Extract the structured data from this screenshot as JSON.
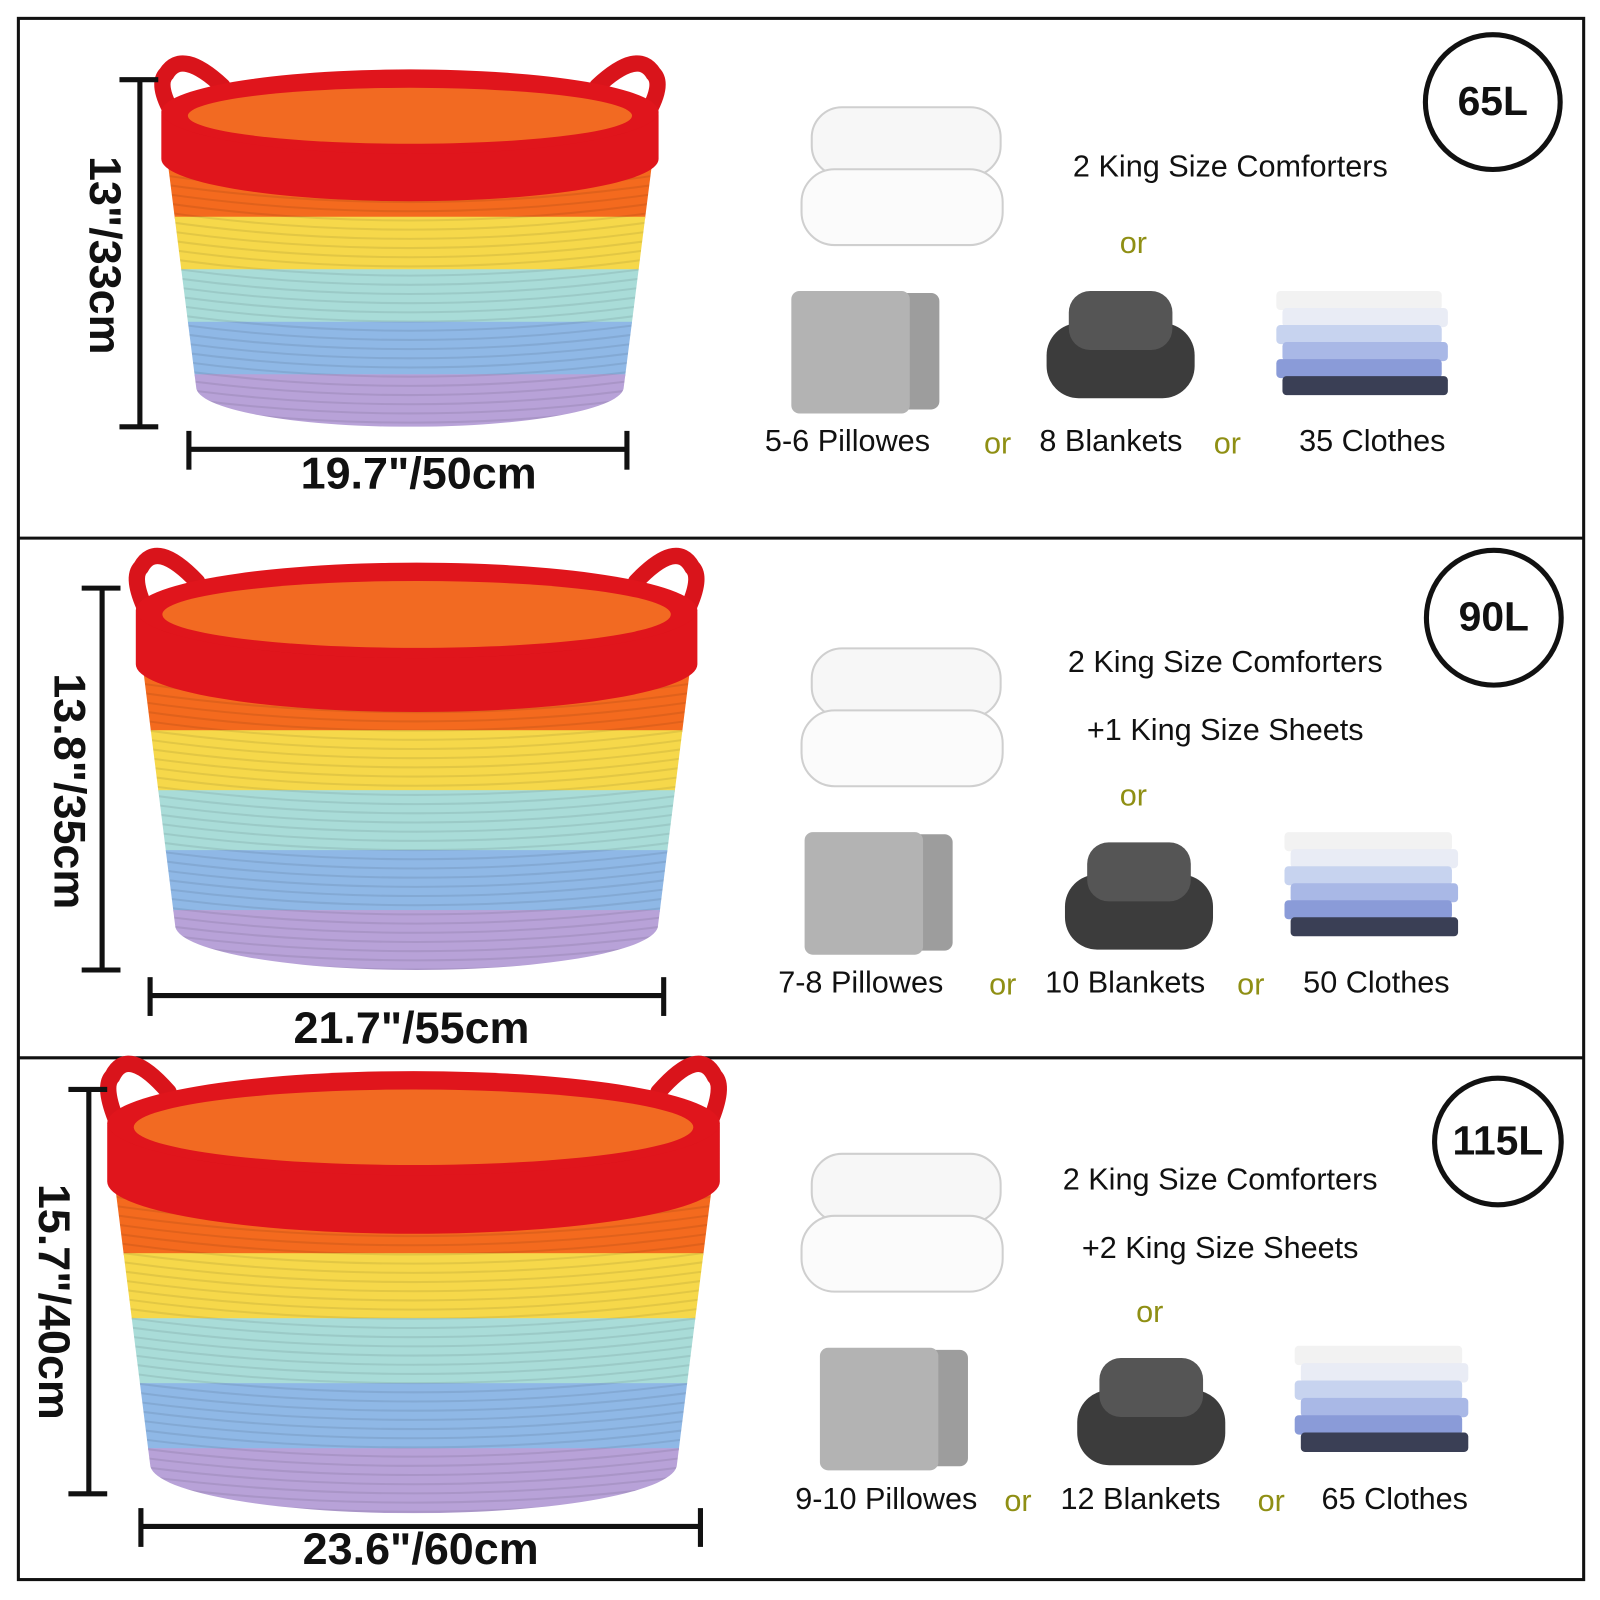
{
  "panels": [
    {
      "capacity": "65L",
      "height": "13\"/33cm",
      "width": "19.7\"/50cm",
      "comforter_lines": [
        "2 King Size Comforters"
      ],
      "or_main": "or",
      "items": [
        "5-6 Pillowes",
        "8 Blankets",
        "35 Clothes"
      ],
      "or_items": [
        "or",
        "or"
      ]
    },
    {
      "capacity": "90L",
      "height": "13.8\"/35cm",
      "width": "21.7\"/55cm",
      "comforter_lines": [
        "2 King Size Comforters",
        "+1 King Size Sheets"
      ],
      "or_main": "or",
      "items": [
        "7-8 Pillowes",
        "10 Blankets",
        "50 Clothes"
      ],
      "or_items": [
        "or",
        "or"
      ]
    },
    {
      "capacity": "115L",
      "height": "15.7\"/40cm",
      "width": "23.6\"/60cm",
      "comforter_lines": [
        "2 King Size Comforters",
        "+2 King Size Sheets"
      ],
      "or_main": "or",
      "items": [
        "9-10 Pillowes",
        "12 Blankets",
        "65 Clothes"
      ],
      "or_items": [
        "or",
        "or"
      ]
    }
  ]
}
